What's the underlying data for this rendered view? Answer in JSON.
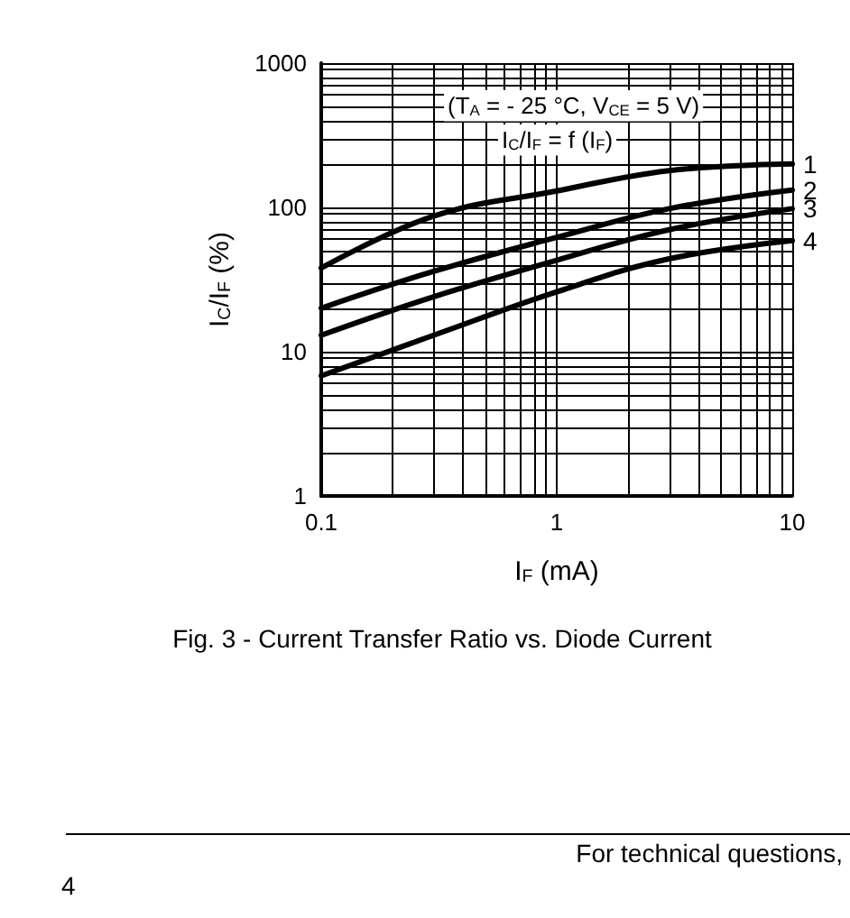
{
  "chart_data": {
    "type": "line",
    "title": "Fig. 3 - Current Transfer Ratio vs. Diode Current",
    "xlabel": "I$_{F}$ (mA)",
    "ylabel": "I$_{C}$/I$_{F}$ (%)",
    "annotations": [
      "(T$_{A}$ = - 25 °C, V$_{CE}$ = 5 V)",
      "I$_{C}$/I$_{F}$ = f (I$_{F}$)",
      "For technical questions,",
      "4"
    ],
    "log": "xy",
    "grid": true,
    "legend": false,
    "marker": "none",
    "line_style": "solid",
    "xlim": [
      0.1,
      10
    ],
    "xticks": [
      0.1,
      {
        "value": 0.2,
        "label": null
      },
      {
        "value": 0.3,
        "label": null
      },
      {
        "value": 0.4,
        "label": null
      },
      {
        "value": 0.5,
        "label": null
      },
      {
        "value": 0.6,
        "label": null
      },
      {
        "value": 0.7,
        "label": null
      },
      {
        "value": 0.8,
        "label": null
      },
      {
        "value": 0.9,
        "label": null
      },
      1,
      {
        "value": 2,
        "label": null
      },
      {
        "value": 3,
        "label": null
      },
      {
        "value": 4,
        "label": null
      },
      {
        "value": 5,
        "label": null
      },
      {
        "value": 6,
        "label": null
      },
      {
        "value": 7,
        "label": null
      },
      {
        "value": 8,
        "label": null
      },
      {
        "value": 9,
        "label": null
      },
      10
    ],
    "ylim": [
      1,
      1000
    ],
    "yticks": [
      1,
      {
        "value": 2,
        "label": null
      },
      {
        "value": 3,
        "label": null
      },
      {
        "value": 4,
        "label": null
      },
      {
        "value": 5,
        "label": null
      },
      {
        "value": 6,
        "label": null
      },
      {
        "value": 7,
        "label": null
      },
      {
        "value": 8,
        "label": null
      },
      {
        "value": 9,
        "label": null
      },
      10,
      {
        "value": 20,
        "label": null
      },
      {
        "value": 30,
        "label": null
      },
      {
        "value": 40,
        "label": null
      },
      {
        "value": 50,
        "label": null
      },
      {
        "value": 60,
        "label": null
      },
      {
        "value": 70,
        "label": null
      },
      {
        "value": 80,
        "label": null
      },
      {
        "value": 90,
        "label": null
      },
      100,
      {
        "value": 200,
        "label": null
      },
      {
        "value": 300,
        "label": null
      },
      {
        "value": 400,
        "label": null
      },
      {
        "value": 500,
        "label": null
      },
      {
        "value": 600,
        "label": null
      },
      {
        "value": 700,
        "label": null
      },
      {
        "value": 800,
        "label": null
      },
      {
        "value": 900,
        "label": null
      },
      1000
    ],
    "x": [
      0.1,
      0.3,
      1,
      3,
      10
    ],
    "series": [
      {
        "name": "1",
        "color": "#000000",
        "values": [
          38,
          87,
          130,
          180,
          200
        ]
      },
      {
        "name": "2",
        "color": "#000000",
        "values": [
          20,
          36,
          62,
          98,
          132
        ]
      },
      {
        "name": "3",
        "color": "#000000",
        "values": [
          13,
          24,
          43,
          70,
          98
        ]
      },
      {
        "name": "4",
        "color": "#000000",
        "values": [
          6.8,
          13,
          26,
          44,
          59
        ]
      }
    ]
  }
}
